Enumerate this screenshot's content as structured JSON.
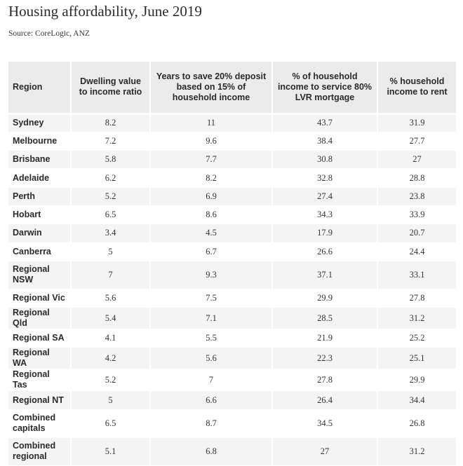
{
  "title": "Housing affordability, June 2019",
  "source": "Source: CoreLogic, ANZ",
  "table": {
    "headers": [
      "Region",
      "Dwelling value to income ratio",
      "Years to save 20% deposit based on 15% of household income",
      "% of household income to service 80% LVR mortgage",
      "% household income to rent"
    ],
    "rows": [
      [
        "Sydney",
        "8.2",
        "11",
        "43.7",
        "31.9"
      ],
      [
        "Melbourne",
        "7.2",
        "9.6",
        "38.4",
        "27.7"
      ],
      [
        "Brisbane",
        "5.8",
        "7.7",
        "30.8",
        "27"
      ],
      [
        "Adelaide",
        "6.2",
        "8.2",
        "32.8",
        "28.8"
      ],
      [
        "Perth",
        "5.2",
        "6.9",
        "27.4",
        "23.8"
      ],
      [
        "Hobart",
        "6.5",
        "8.6",
        "34.3",
        "33.9"
      ],
      [
        "Darwin",
        "3.4",
        "4.5",
        "17.9",
        "20.7"
      ],
      [
        "Canberra",
        "5",
        "6.7",
        "26.6",
        "24.4"
      ],
      [
        "Regional NSW",
        "7",
        "9.3",
        "37.1",
        "33.1"
      ],
      [
        "Regional Vic",
        "5.6",
        "7.5",
        "29.9",
        "27.8"
      ],
      [
        "Regional Qld",
        "5.4",
        "7.1",
        "28.5",
        "31.2"
      ],
      [
        "Regional SA",
        "4.1",
        "5.5",
        "21.9",
        "25.2"
      ],
      [
        "Regional WA",
        "4.2",
        "5.6",
        "22.3",
        "25.1"
      ],
      [
        "Regional Tas",
        "5.2",
        "7",
        "27.8",
        "29.9"
      ],
      [
        "Regional NT",
        "5",
        "6.6",
        "26.4",
        "34.4"
      ],
      [
        "Combined capitals",
        "6.5",
        "8.7",
        "34.5",
        "26.8"
      ],
      [
        "Combined regional",
        "5.1",
        "6.8",
        "27",
        "31.2"
      ]
    ]
  }
}
